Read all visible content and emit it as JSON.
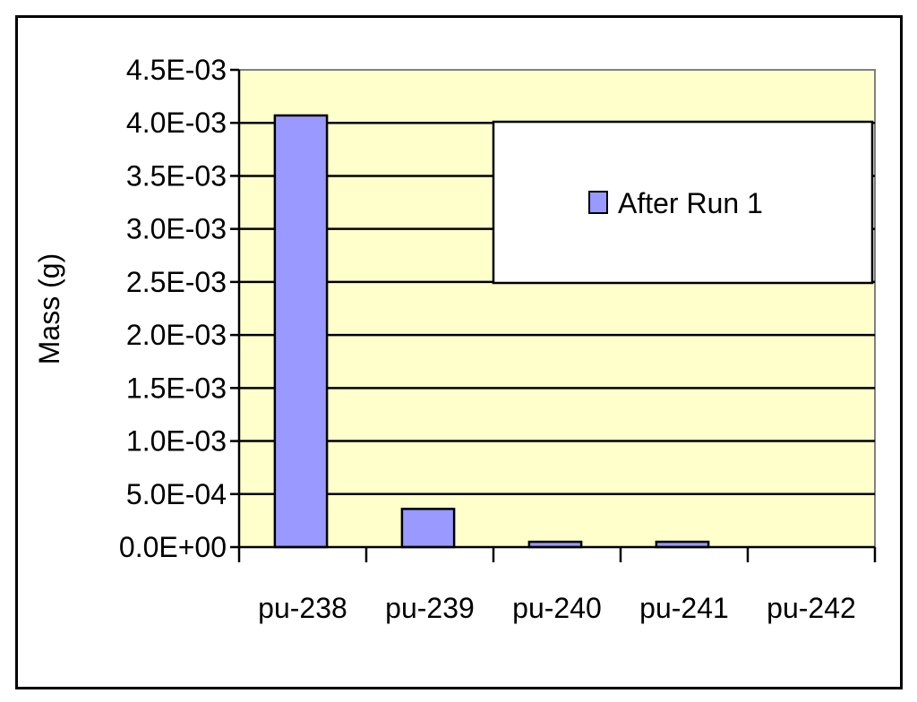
{
  "chart_data": {
    "type": "bar",
    "title": "",
    "xlabel": "",
    "ylabel": "Mass (g)",
    "categories": [
      "pu-238",
      "pu-239",
      "pu-240",
      "pu-241",
      "pu-242"
    ],
    "series": [
      {
        "name": "After Run 1",
        "values": [
          0.00407,
          0.00036,
          5e-05,
          5e-05,
          0.0
        ]
      }
    ],
    "ylim": [
      0,
      0.0045
    ],
    "yticks": [
      0,
      0.0005,
      0.001,
      0.0015,
      0.002,
      0.0025,
      0.003,
      0.0035,
      0.004,
      0.0045
    ],
    "ytick_labels": [
      "0.0E+00",
      "5.0E-04",
      "1.0E-03",
      "1.5E-03",
      "2.0E-03",
      "2.5E-03",
      "3.0E-03",
      "3.5E-03",
      "4.0E-03",
      "4.5E-03"
    ],
    "grid": true,
    "legend_position": "top-right",
    "colors": {
      "bar": "#9999ff",
      "plot_background": "#ffffcc",
      "gridline": "#000000",
      "axis": "#000000"
    }
  }
}
